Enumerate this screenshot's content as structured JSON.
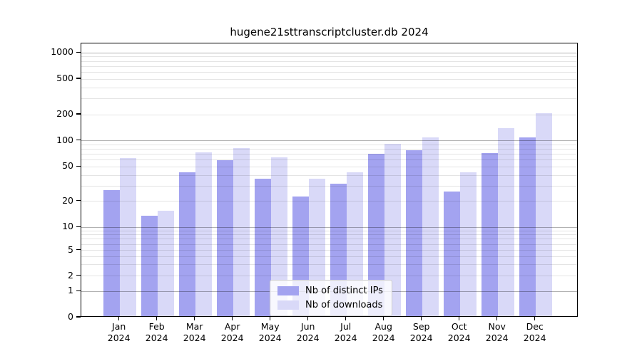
{
  "chart_data": {
    "type": "bar",
    "title": "hugene21sttranscriptcluster.db 2024",
    "categories": [
      "Jan",
      "Feb",
      "Mar",
      "Apr",
      "May",
      "Jun",
      "Jul",
      "Aug",
      "Sep",
      "Oct",
      "Nov",
      "Dec"
    ],
    "year_label": "2024",
    "series": [
      {
        "name": "Nb of distinct IPs",
        "color": "#a3a3f0",
        "values": [
          26,
          13,
          42,
          57,
          35,
          22,
          31,
          68,
          75,
          25,
          70,
          105
        ]
      },
      {
        "name": "Nb of downloads",
        "color": "#d9d9f8",
        "values": [
          61,
          15,
          71,
          79,
          62,
          35,
          42,
          88,
          105,
          42,
          135,
          202
        ]
      }
    ],
    "yticks": [
      0,
      1,
      2,
      5,
      10,
      20,
      50,
      100,
      200,
      500,
      1000
    ],
    "yscale": "symlog",
    "ylim": [
      0,
      1120
    ],
    "grid": "horizontal major+minor, drawn over bars",
    "legend_position": "lower center",
    "colors": {
      "axis": "#000000",
      "grid_major": "#b0b0b0",
      "grid_minor": "#e3e3e3",
      "background": "#ffffff",
      "legend_border": "#cccccc"
    }
  }
}
